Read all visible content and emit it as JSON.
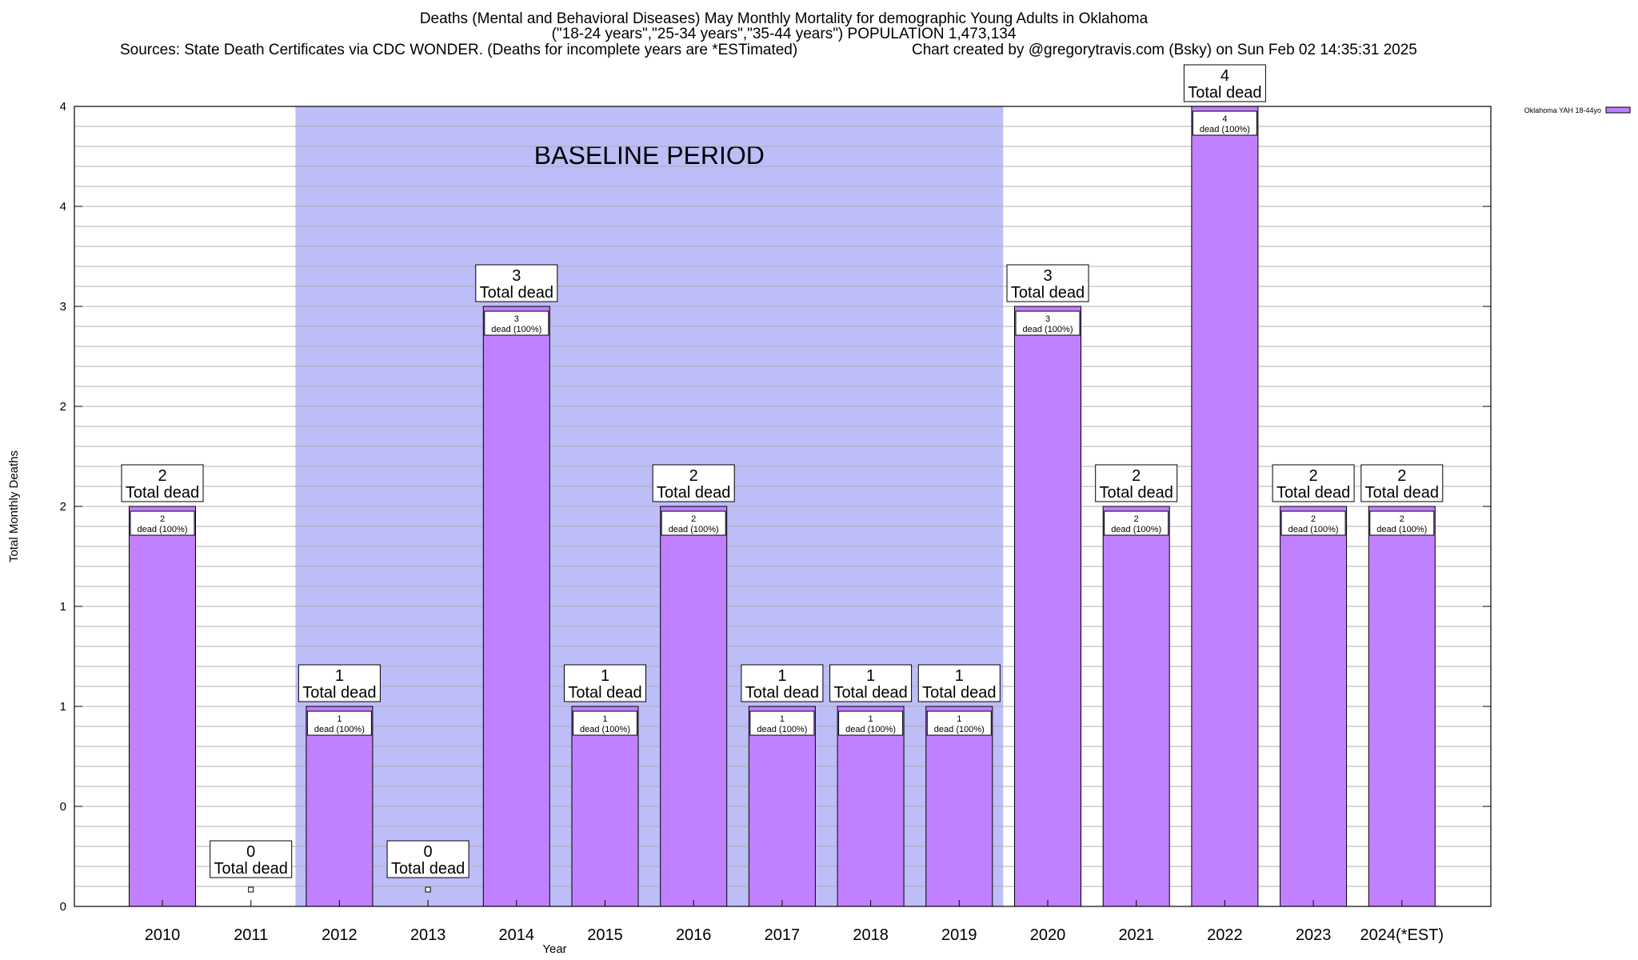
{
  "chart_data": {
    "type": "bar",
    "title_lines": [
      "Deaths (Mental and Behavioral Diseases) May Monthly Mortality for demographic Young Adults in Oklahoma",
      "(\"18-24 years\",\"25-34 years\",\"35-44 years\") POPULATION 1,473,134"
    ],
    "sources": "Sources: State Death Certificates via CDC WONDER. (Deaths for incomplete years are *ESTimated)",
    "credit": "Chart created by @gregorytravis.com (Bsky) on Sun Feb 02 14:35:31 2025",
    "xlabel": "Year",
    "ylabel": "Total Monthly Deaths",
    "categories": [
      "2010",
      "2011",
      "2012",
      "2013",
      "2014",
      "2015",
      "2016",
      "2017",
      "2018",
      "2019",
      "2020",
      "2021",
      "2022",
      "2023",
      "2024(*EST)"
    ],
    "series": [
      {
        "name": "Oklahoma YAH 18-44yo",
        "values": [
          2,
          0,
          1,
          0,
          3,
          1,
          2,
          1,
          1,
          1,
          3,
          2,
          4,
          2,
          2
        ]
      }
    ],
    "ylim": [
      0,
      4
    ],
    "ytick_labels": [
      "0",
      "0",
      "1",
      "1",
      "2",
      "2",
      "3",
      "4",
      "4"
    ],
    "total_label": "Total dead",
    "inner_label_suffix": "dead (100%)",
    "baseline": {
      "label": "BASELINE PERIOD",
      "start": "2012",
      "end": "2019"
    },
    "grid": true,
    "legend_position": "top-right",
    "colors": {
      "bar": "#c080ff",
      "bar_edge": "#9955dd",
      "baseline": "#bdbdf7",
      "grid": "#b0b0b0"
    }
  }
}
